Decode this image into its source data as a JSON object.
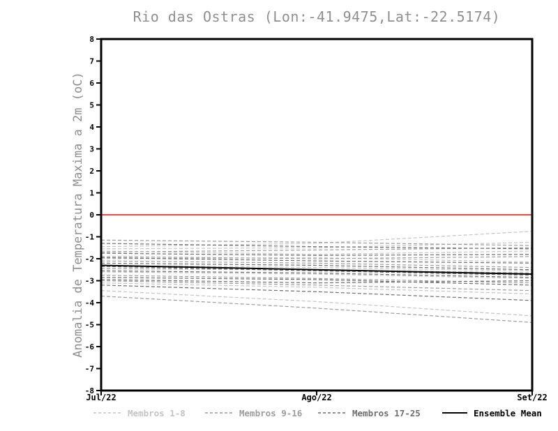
{
  "chart_data": {
    "type": "line",
    "title": "Rio das Ostras (Lon:-41.9475,Lat:-22.5174)",
    "ylabel": "Anomalia de Temperatura Maxima a 2m (oC)",
    "xlabel": "",
    "x_tick_labels": [
      "Jul/22",
      "Ago/22",
      "Set/22"
    ],
    "y_ticks": [
      8,
      7,
      6,
      5,
      4,
      3,
      2,
      1,
      0,
      -1,
      -2,
      -3,
      -4,
      -5,
      -6,
      -7,
      -8
    ],
    "ylim": [
      -8,
      8
    ],
    "grid": false,
    "legend_position": "bottom",
    "zero_line": {
      "value": 0,
      "color": "#f44848"
    },
    "axis_color": "#000000",
    "title_color": "#8f8f8f",
    "groups": [
      {
        "name": "Membros 1-8",
        "color": "#c4c4c4",
        "style": "dashed"
      },
      {
        "name": "Membros 9-16",
        "color": "#9c9c9c",
        "style": "dashed"
      },
      {
        "name": "Membros 17-25",
        "color": "#6e6e6e",
        "style": "dashed"
      },
      {
        "name": "Ensemble Mean",
        "color": "#000000",
        "style": "solid"
      }
    ],
    "series": [
      {
        "group": 0,
        "values": [
          -1.45,
          -1.3,
          -0.75
        ]
      },
      {
        "group": 0,
        "values": [
          -1.55,
          -1.5,
          -1.25
        ]
      },
      {
        "group": 0,
        "values": [
          -1.65,
          -1.8,
          -1.65
        ]
      },
      {
        "group": 0,
        "values": [
          -2.0,
          -1.95,
          -2.15
        ]
      },
      {
        "group": 0,
        "values": [
          -2.3,
          -2.4,
          -2.55
        ]
      },
      {
        "group": 0,
        "values": [
          -2.6,
          -2.7,
          -2.9
        ]
      },
      {
        "group": 0,
        "values": [
          -3.1,
          -3.3,
          -3.6
        ]
      },
      {
        "group": 0,
        "values": [
          -3.45,
          -3.95,
          -4.6
        ]
      },
      {
        "group": 1,
        "values": [
          -1.15,
          -1.25,
          -1.4
        ]
      },
      {
        "group": 1,
        "values": [
          -1.7,
          -1.6,
          -1.5
        ]
      },
      {
        "group": 1,
        "values": [
          -1.9,
          -2.0,
          -1.9
        ]
      },
      {
        "group": 1,
        "values": [
          -2.1,
          -2.2,
          -2.4
        ]
      },
      {
        "group": 1,
        "values": [
          -2.45,
          -2.5,
          -2.65
        ]
      },
      {
        "group": 1,
        "values": [
          -2.75,
          -2.9,
          -3.1
        ]
      },
      {
        "group": 1,
        "values": [
          -3.0,
          -3.2,
          -3.45
        ]
      },
      {
        "group": 1,
        "values": [
          -3.7,
          -4.25,
          -4.9
        ]
      },
      {
        "group": 2,
        "values": [
          -1.3,
          -1.45,
          -1.55
        ]
      },
      {
        "group": 2,
        "values": [
          -1.75,
          -1.85,
          -1.8
        ]
      },
      {
        "group": 2,
        "values": [
          -1.95,
          -2.1,
          -2.2
        ]
      },
      {
        "group": 2,
        "values": [
          -2.2,
          -2.3,
          -2.5
        ]
      },
      {
        "group": 2,
        "values": [
          -2.35,
          -2.55,
          -2.75
        ]
      },
      {
        "group": 2,
        "values": [
          -2.55,
          -2.65,
          -2.85
        ]
      },
      {
        "group": 2,
        "values": [
          -2.85,
          -2.95,
          -3.2
        ]
      },
      {
        "group": 2,
        "values": [
          -2.95,
          -3.1,
          -3.0
        ]
      },
      {
        "group": 2,
        "values": [
          -3.2,
          -3.5,
          -3.9
        ]
      },
      {
        "group": 3,
        "values": [
          -2.3,
          -2.5,
          -2.7
        ]
      }
    ]
  }
}
